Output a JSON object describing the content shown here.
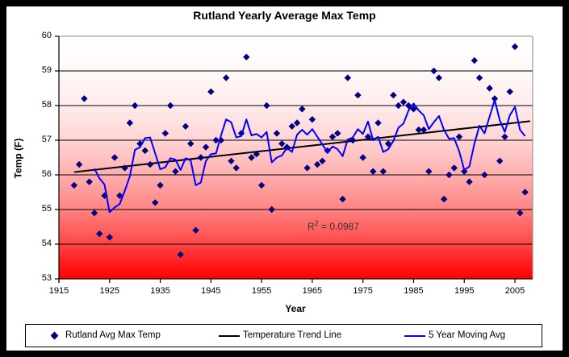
{
  "chart_data": {
    "type": "scatter",
    "title": "Rutland Yearly Average Max Temp",
    "xlabel": "Year",
    "ylabel": "Temp (F)",
    "xlim": [
      1915,
      2008.5
    ],
    "ylim": [
      53,
      60
    ],
    "x_ticks": [
      1915,
      1925,
      1935,
      1945,
      1955,
      1965,
      1975,
      1985,
      1995,
      2005
    ],
    "y_ticks": [
      53,
      54,
      55,
      56,
      57,
      58,
      59,
      60
    ],
    "grid": true,
    "legend_position": "bottom",
    "annotation": "R² = 0.0987",
    "annotation_parts": {
      "base": "R",
      "exponent": "2",
      "rest": " = 0.0987"
    },
    "x": [
      1918,
      1919,
      1920,
      1921,
      1922,
      1923,
      1924,
      1925,
      1926,
      1927,
      1928,
      1929,
      1930,
      1931,
      1932,
      1933,
      1934,
      1935,
      1936,
      1937,
      1938,
      1939,
      1940,
      1941,
      1942,
      1943,
      1944,
      1945,
      1946,
      1947,
      1948,
      1949,
      1950,
      1951,
      1952,
      1953,
      1954,
      1955,
      1956,
      1957,
      1958,
      1959,
      1960,
      1961,
      1962,
      1963,
      1964,
      1965,
      1966,
      1967,
      1968,
      1969,
      1970,
      1971,
      1972,
      1973,
      1974,
      1975,
      1976,
      1977,
      1978,
      1979,
      1980,
      1981,
      1982,
      1983,
      1984,
      1985,
      1986,
      1987,
      1988,
      1989,
      1990,
      1991,
      1992,
      1993,
      1994,
      1995,
      1996,
      1997,
      1998,
      1999,
      2000,
      2001,
      2002,
      2003,
      2004,
      2005,
      2006,
      2007
    ],
    "series": [
      {
        "name": "Rutland Avg Max Temp",
        "type": "scatter",
        "marker": "diamond",
        "color": "#000080",
        "values": [
          55.7,
          56.3,
          58.2,
          55.8,
          54.9,
          54.3,
          55.4,
          54.2,
          56.5,
          55.4,
          56.2,
          57.5,
          58.0,
          56.9,
          56.7,
          56.3,
          55.2,
          55.7,
          57.2,
          58.0,
          56.1,
          53.7,
          57.4,
          56.9,
          54.4,
          56.5,
          56.8,
          58.4,
          57.0,
          57.0,
          58.8,
          56.4,
          56.2,
          57.2,
          59.4,
          56.5,
          56.6,
          55.7,
          58.0,
          55.0,
          57.2,
          56.9,
          56.8,
          57.4,
          57.5,
          57.9,
          56.2,
          57.6,
          56.3,
          56.4,
          56.7,
          57.1,
          57.2,
          55.3,
          58.8,
          57.0,
          58.3,
          56.5,
          57.1,
          56.1,
          57.5,
          56.1,
          56.9,
          58.3,
          58.0,
          58.1,
          58.0,
          57.9,
          57.3,
          57.3,
          56.1,
          59.0,
          58.8,
          55.3,
          56.0,
          56.2,
          57.1,
          56.1,
          55.8,
          59.3,
          58.8,
          56.0,
          58.5,
          58.2,
          56.4,
          57.1,
          58.4,
          59.7,
          54.9,
          55.5
        ]
      },
      {
        "name": "Temperature Trend Line",
        "type": "trendline",
        "color": "#000000",
        "endpoints": {
          "x1": 1918,
          "y1": 56.08,
          "x2": 2008,
          "y2": 57.55
        },
        "r_squared": 0.0987
      },
      {
        "name": "5 Year Moving Avg",
        "type": "moving_average",
        "color": "#0000ff",
        "window": 5
      }
    ],
    "style": {
      "marker_color": "#000080",
      "moving_avg_color": "#0000ff",
      "trend_color": "#000000",
      "gridline_color": "#000000",
      "plot_border_color": "#8a8a8a",
      "frame_color": "#000000",
      "plot_gradient": [
        {
          "o": "0%",
          "c": "#ffffff"
        },
        {
          "o": "12%",
          "c": "#fffafa"
        },
        {
          "o": "28%",
          "c": "#ffecec"
        },
        {
          "o": "42%",
          "c": "#ffd6d6"
        },
        {
          "o": "56%",
          "c": "#ffb2b2"
        },
        {
          "o": "70%",
          "c": "#ff8888"
        },
        {
          "o": "83%",
          "c": "#ff5252"
        },
        {
          "o": "93%",
          "c": "#ff2020"
        },
        {
          "o": "100%",
          "c": "#ff0000"
        }
      ]
    }
  }
}
